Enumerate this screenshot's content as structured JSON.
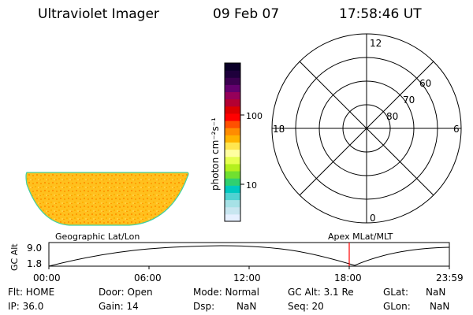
{
  "header": {
    "title": "Ultraviolet Imager",
    "date": "09 Feb 07",
    "time": "17:58:46 UT"
  },
  "colorbar": {
    "unit": "photon cm⁻²s⁻¹",
    "tick_labels": [
      "100",
      "10"
    ],
    "colors": [
      "#e6f0ff",
      "#c8e6f0",
      "#a6e1e6",
      "#50d2d2",
      "#00c8c0",
      "#30d070",
      "#70e030",
      "#b4f01e",
      "#e6ff50",
      "#ffffa0",
      "#ffe650",
      "#ffb400",
      "#ff8c00",
      "#ff5000",
      "#ff0000",
      "#dc0000",
      "#b40032",
      "#96005a",
      "#64006e",
      "#3c0050",
      "#1e003c",
      "#0a0028"
    ]
  },
  "polar": {
    "labels": [
      "12",
      "18",
      "6",
      "0",
      "60",
      "70",
      "80"
    ]
  },
  "timeline": {
    "left_label": "Geographic Lat/Lon",
    "right_label": "Apex  MLat/MLT",
    "y_axis_label": "GC Alt",
    "y_ticks": [
      "9.0",
      "1.8"
    ],
    "x_ticks": [
      "00:00",
      "06:00",
      "12:00",
      "18:00",
      "23:59"
    ],
    "marker_color": "#ff0000",
    "marker_time_fraction": 0.75
  },
  "status": {
    "row1": {
      "flt": "Flt: HOME",
      "door": "Door: Open",
      "mode": "Mode: Normal",
      "gcalt": "GC Alt: 3.1 Re",
      "glat_label": "GLat:",
      "glat_value": "NaN"
    },
    "row2": {
      "ip": "IP: 36.0",
      "gain": "Gain: 14",
      "dsp_label": "Dsp:",
      "dsp_value": "NaN",
      "seq": "Seq: 20",
      "glon_label": "GLon:",
      "glon_value": "NaN"
    }
  }
}
